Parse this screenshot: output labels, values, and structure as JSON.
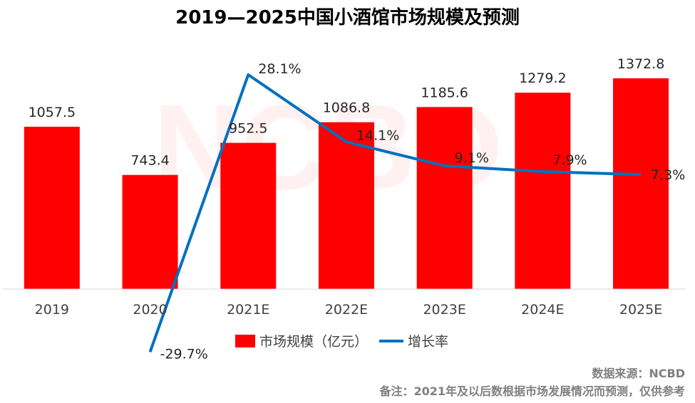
{
  "colors": {
    "bar": "#ff0000",
    "line": "#0070c0",
    "axis": "#d9d9d9"
  },
  "chart_data": {
    "type": "bar",
    "title": "2019—2025中国小酒馆市场规模及预测",
    "categories": [
      "2019",
      "2020",
      "2021E",
      "2022E",
      "2023E",
      "2024E",
      "2025E"
    ],
    "series": [
      {
        "name": "市场规模（亿元）",
        "kind": "bar",
        "values": [
          1057.5,
          743.4,
          952.5,
          1086.8,
          1185.6,
          1279.2,
          1372.8
        ],
        "labels": [
          "1057.5",
          "743.4",
          "952.5",
          "1086.8",
          "1185.6",
          "1279.2",
          "1372.8"
        ]
      },
      {
        "name": "增长率",
        "kind": "line",
        "values": [
          null,
          -29.7,
          28.1,
          14.1,
          9.1,
          7.9,
          7.3
        ],
        "labels": [
          "",
          "-29.7%",
          "28.1%",
          "14.1%",
          "9.1%",
          "7.9%",
          "7.3%"
        ]
      }
    ],
    "legend": "bottom",
    "grid": false
  },
  "footer": {
    "source": "数据来源：NCBD",
    "note": "备注：2021年及以后数根据市场发展情况而预测，仅供参考"
  }
}
